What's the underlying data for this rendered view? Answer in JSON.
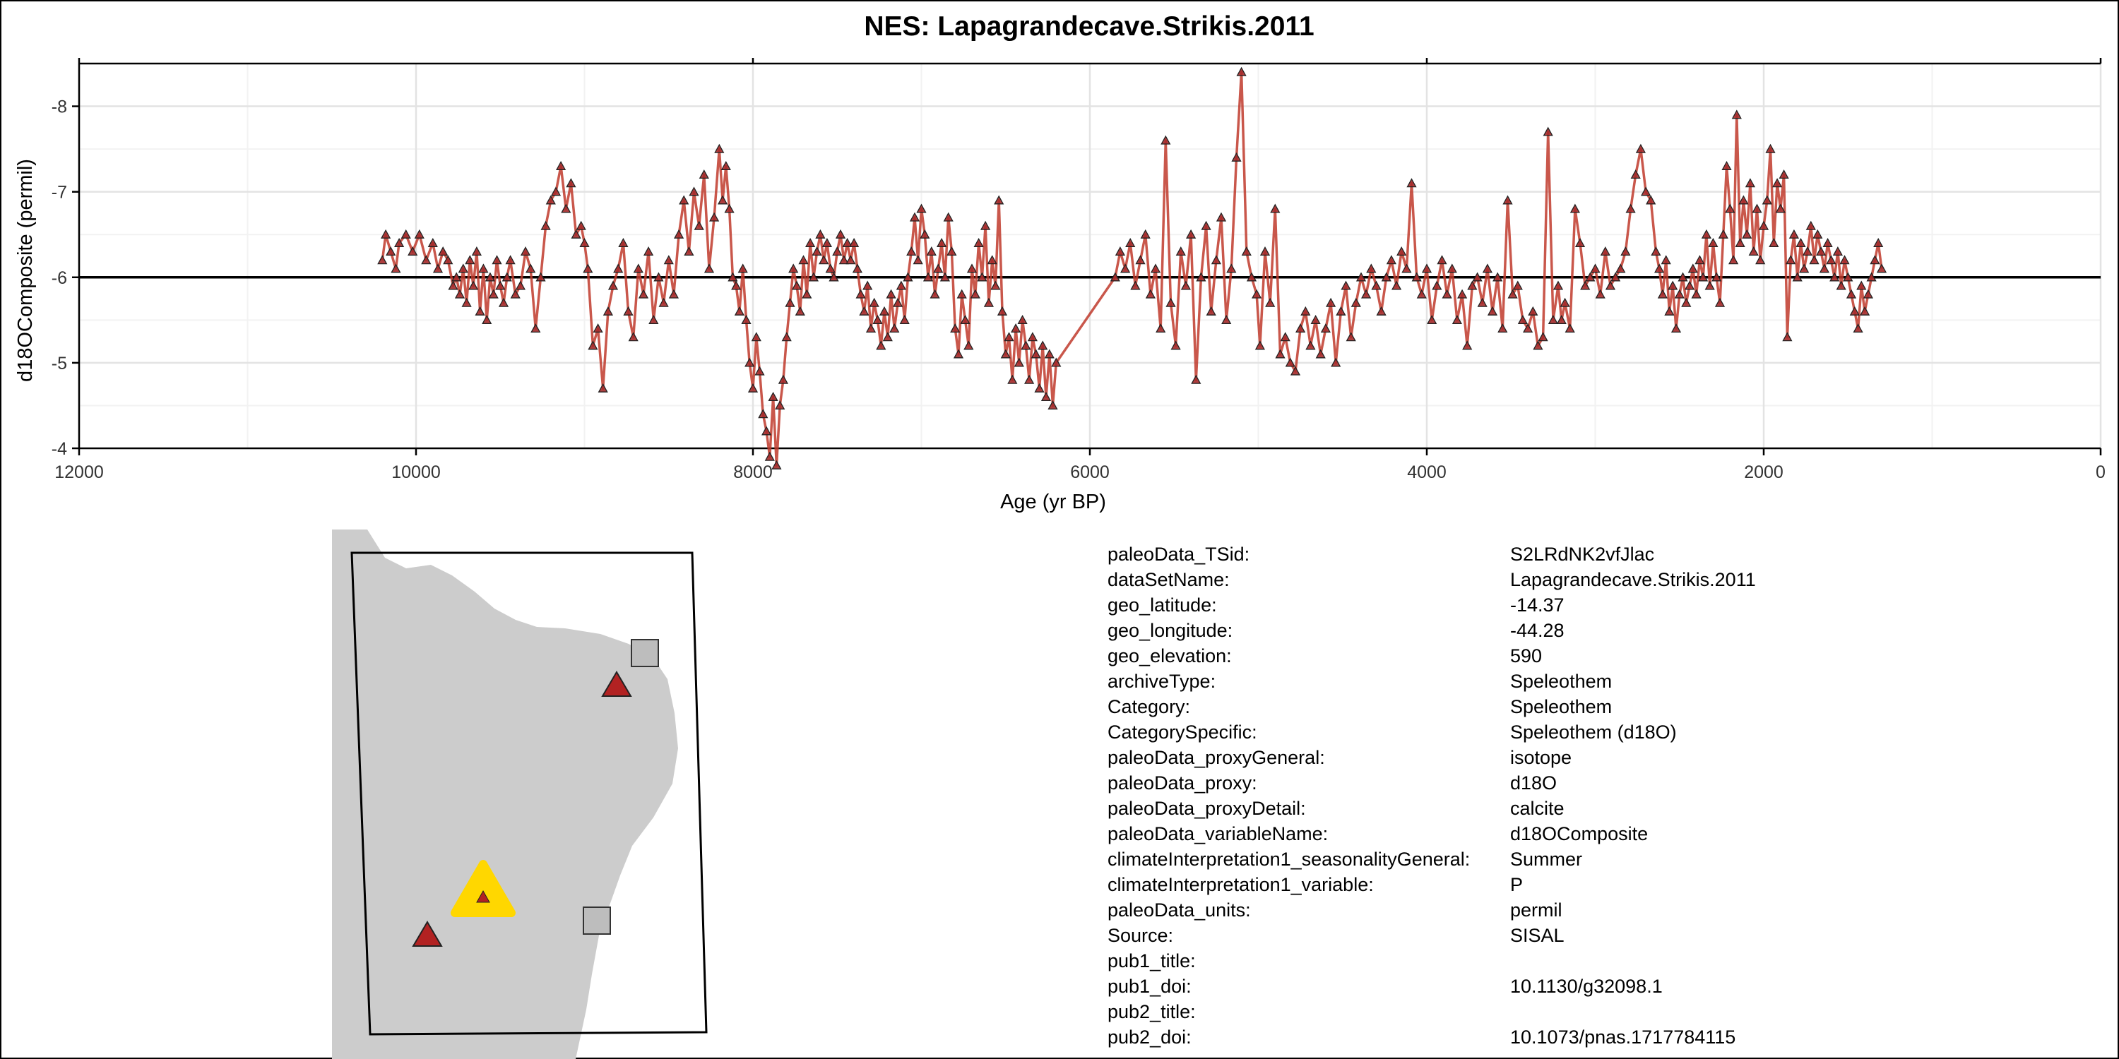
{
  "chart_data": {
    "type": "line",
    "title": "NES: Lapagrandecave.Strikis.2011",
    "xlabel": "Age (yr BP)",
    "ylabel": "d18OComposite (permil)",
    "xlim": [
      12000,
      0
    ],
    "ylim": [
      -4,
      -8.5
    ],
    "y_reversed": true,
    "x_reversed": true,
    "x_ticks": [
      12000,
      10000,
      8000,
      6000,
      4000,
      2000,
      0
    ],
    "x_tick_labels": [
      "12000",
      "10000",
      "8000",
      "6000",
      "4000",
      "2000",
      "0"
    ],
    "y_ticks": [
      -8,
      -7,
      -6,
      -5,
      -4
    ],
    "y_tick_labels": [
      "-8",
      "-7",
      "-6",
      "-5",
      "-4"
    ],
    "reference_line": -6,
    "grid": true,
    "marker": "triangle",
    "line_color": "#C0392B",
    "marker_fill": "#A52A2A",
    "series": [
      {
        "x": [
          10200,
          10180,
          10150,
          10120,
          10100,
          10060,
          10020,
          9980,
          9940,
          9900,
          9870,
          9840,
          9810,
          9780,
          9760,
          9740,
          9720,
          9700,
          9680,
          9660,
          9640,
          9620,
          9600,
          9580,
          9560,
          9540,
          9520,
          9500,
          9480,
          9460,
          9440,
          9410,
          9380,
          9350,
          9320,
          9290,
          9260,
          9230,
          9200,
          9170,
          9140,
          9110,
          9080,
          9050,
          9020,
          9000,
          8980,
          8950,
          8920,
          8890,
          8860,
          8830,
          8800,
          8770,
          8740,
          8710,
          8680,
          8650,
          8620,
          8590,
          8560,
          8530,
          8500,
          8470,
          8440,
          8410,
          8380,
          8350,
          8320,
          8290,
          8260,
          8230,
          8200,
          8180,
          8160,
          8140,
          8120,
          8100,
          8080,
          8060,
          8040,
          8020,
          8000,
          7980,
          7960,
          7940,
          7920,
          7900,
          7880,
          7860,
          7840,
          7820,
          7800,
          7780,
          7760,
          7740,
          7720,
          7700,
          7680,
          7660,
          7640,
          7620,
          7600,
          7580,
          7560,
          7540,
          7520,
          7500,
          7480,
          7460,
          7440,
          7420,
          7400,
          7380,
          7360,
          7340,
          7320,
          7300,
          7280,
          7260,
          7240,
          7220,
          7200,
          7180,
          7160,
          7140,
          7120,
          7100,
          7080,
          7060,
          7040,
          7020,
          7000,
          6980,
          6960,
          6940,
          6920,
          6900,
          6880,
          6860,
          6840,
          6820,
          6800,
          6780,
          6760,
          6740,
          6720,
          6700,
          6680,
          6660,
          6640,
          6620,
          6600,
          6580,
          6560,
          6540,
          6520,
          6500,
          6480,
          6460,
          6440,
          6420,
          6400,
          6380,
          6360,
          6340,
          6320,
          6300,
          6280,
          6260,
          6240,
          6220,
          6200,
          5850,
          5820,
          5790,
          5760,
          5730,
          5700,
          5670,
          5640,
          5610,
          5580,
          5550,
          5520,
          5490,
          5460,
          5430,
          5400,
          5370,
          5340,
          5310,
          5280,
          5250,
          5220,
          5190,
          5160,
          5130,
          5100,
          5070,
          5040,
          5010,
          4990,
          4960,
          4930,
          4900,
          4870,
          4840,
          4810,
          4780,
          4750,
          4720,
          4690,
          4660,
          4630,
          4600,
          4570,
          4540,
          4510,
          4480,
          4450,
          4420,
          4390,
          4360,
          4330,
          4300,
          4270,
          4240,
          4210,
          4180,
          4150,
          4120,
          4090,
          4060,
          4030,
          4000,
          3970,
          3940,
          3910,
          3880,
          3850,
          3820,
          3790,
          3760,
          3730,
          3700,
          3670,
          3640,
          3610,
          3580,
          3550,
          3520,
          3490,
          3460,
          3430,
          3400,
          3370,
          3340,
          3310,
          3280,
          3250,
          3220,
          3200,
          3180,
          3150,
          3120,
          3090,
          3060,
          3030,
          3000,
          2970,
          2940,
          2910,
          2880,
          2850,
          2820,
          2790,
          2760,
          2730,
          2700,
          2670,
          2640,
          2620,
          2600,
          2580,
          2560,
          2540,
          2520,
          2500,
          2480,
          2460,
          2440,
          2420,
          2400,
          2380,
          2360,
          2340,
          2320,
          2300,
          2280,
          2260,
          2240,
          2220,
          2200,
          2180,
          2160,
          2140,
          2120,
          2100,
          2080,
          2060,
          2040,
          2020,
          2000,
          1980,
          1960,
          1940,
          1920,
          1900,
          1880,
          1860,
          1840,
          1820,
          1800,
          1780,
          1760,
          1740,
          1720,
          1700,
          1680,
          1660,
          1640,
          1620,
          1600,
          1580,
          1560,
          1540,
          1520,
          1500,
          1480,
          1460,
          1440,
          1420,
          1400,
          1380,
          1360,
          1340,
          1320,
          1300
        ],
        "y": [
          -6.2,
          -6.5,
          -6.3,
          -6.1,
          -6.4,
          -6.5,
          -6.3,
          -6.5,
          -6.2,
          -6.4,
          -6.1,
          -6.3,
          -6.2,
          -5.9,
          -6.0,
          -5.8,
          -6.1,
          -5.7,
          -6.2,
          -5.9,
          -6.3,
          -5.6,
          -6.1,
          -5.5,
          -6.0,
          -5.8,
          -6.2,
          -5.9,
          -5.7,
          -6.0,
          -6.2,
          -5.8,
          -5.9,
          -6.3,
          -6.1,
          -5.4,
          -6.0,
          -6.6,
          -6.9,
          -7.0,
          -7.3,
          -6.8,
          -7.1,
          -6.5,
          -6.6,
          -6.4,
          -6.1,
          -5.2,
          -5.4,
          -4.7,
          -5.6,
          -5.9,
          -6.1,
          -6.4,
          -5.6,
          -5.3,
          -6.1,
          -5.8,
          -6.3,
          -5.5,
          -6.0,
          -5.7,
          -6.2,
          -5.8,
          -6.5,
          -6.9,
          -6.3,
          -7.0,
          -6.6,
          -7.2,
          -6.1,
          -6.7,
          -7.5,
          -6.9,
          -7.3,
          -6.8,
          -6.0,
          -5.9,
          -5.6,
          -6.1,
          -5.5,
          -5.0,
          -4.7,
          -5.3,
          -4.9,
          -4.4,
          -4.2,
          -3.9,
          -4.6,
          -3.8,
          -4.5,
          -4.8,
          -5.3,
          -5.7,
          -6.1,
          -5.9,
          -5.6,
          -6.2,
          -5.8,
          -6.4,
          -6.0,
          -6.3,
          -6.5,
          -6.2,
          -6.4,
          -6.1,
          -6.0,
          -6.3,
          -6.5,
          -6.2,
          -6.4,
          -6.2,
          -6.4,
          -6.1,
          -5.8,
          -5.6,
          -5.9,
          -5.4,
          -5.7,
          -5.5,
          -5.2,
          -5.6,
          -5.3,
          -5.8,
          -5.4,
          -5.7,
          -5.9,
          -5.5,
          -6.0,
          -6.3,
          -6.7,
          -6.2,
          -6.8,
          -6.5,
          -6.0,
          -6.3,
          -5.8,
          -6.1,
          -6.4,
          -6.0,
          -6.7,
          -6.3,
          -5.4,
          -5.1,
          -5.8,
          -5.5,
          -5.2,
          -6.1,
          -5.8,
          -6.4,
          -6.0,
          -6.6,
          -5.7,
          -6.2,
          -5.9,
          -6.9,
          -5.6,
          -5.1,
          -5.3,
          -4.8,
          -5.4,
          -5.0,
          -5.5,
          -5.2,
          -4.8,
          -5.3,
          -5.1,
          -4.7,
          -5.2,
          -4.6,
          -5.1,
          -4.5,
          -5.0,
          -6.0,
          -6.3,
          -6.1,
          -6.4,
          -5.9,
          -6.2,
          -6.5,
          -5.8,
          -6.1,
          -5.4,
          -7.6,
          -5.7,
          -5.2,
          -6.3,
          -5.9,
          -6.5,
          -4.8,
          -6.0,
          -6.6,
          -5.6,
          -6.2,
          -6.7,
          -5.5,
          -6.1,
          -7.4,
          -8.4,
          -6.3,
          -6.0,
          -5.8,
          -5.2,
          -6.3,
          -5.7,
          -6.8,
          -5.1,
          -5.3,
          -5.0,
          -4.9,
          -5.4,
          -5.6,
          -5.2,
          -5.5,
          -5.1,
          -5.4,
          -5.7,
          -5.0,
          -5.6,
          -5.9,
          -5.3,
          -5.7,
          -6.0,
          -5.8,
          -6.1,
          -5.9,
          -5.6,
          -6.0,
          -6.2,
          -5.9,
          -6.3,
          -6.1,
          -7.1,
          -6.0,
          -5.8,
          -6.1,
          -5.5,
          -5.9,
          -6.2,
          -5.8,
          -6.1,
          -5.5,
          -5.8,
          -5.2,
          -5.9,
          -6.0,
          -5.7,
          -6.1,
          -5.6,
          -6.0,
          -5.4,
          -6.9,
          -5.8,
          -5.9,
          -5.5,
          -5.4,
          -5.6,
          -5.2,
          -5.3,
          -7.7,
          -5.5,
          -5.9,
          -5.5,
          -5.7,
          -5.4,
          -6.8,
          -6.4,
          -5.9,
          -6.0,
          -6.1,
          -5.8,
          -6.3,
          -5.9,
          -6.0,
          -6.1,
          -6.3,
          -6.8,
          -7.2,
          -7.5,
          -7.0,
          -6.9,
          -6.3,
          -6.1,
          -5.8,
          -6.2,
          -5.6,
          -5.9,
          -5.4,
          -5.8,
          -6.0,
          -5.7,
          -5.9,
          -6.1,
          -5.8,
          -6.2,
          -6.0,
          -6.5,
          -5.9,
          -6.4,
          -6.0,
          -5.7,
          -6.5,
          -7.3,
          -6.8,
          -6.2,
          -7.9,
          -6.4,
          -6.9,
          -6.5,
          -7.1,
          -6.3,
          -6.8,
          -6.2,
          -6.6,
          -6.9,
          -7.5,
          -6.4,
          -7.1,
          -6.8,
          -7.2,
          -5.3,
          -6.2,
          -6.5,
          -6.0,
          -6.4,
          -6.1,
          -6.3,
          -6.6,
          -6.2,
          -6.5,
          -6.3,
          -6.1,
          -6.4,
          -6.2,
          -6.0,
          -6.3,
          -5.9,
          -6.2,
          -6.0,
          -5.8,
          -5.6,
          -5.4,
          -5.9,
          -5.6,
          -5.8,
          -6.0,
          -6.2,
          -6.4,
          -6.1
        ]
      }
    ]
  },
  "metadata": [
    {
      "key": "paleoData_TSid:",
      "value": "S2LRdNK2vfJlac"
    },
    {
      "key": "dataSetName:",
      "value": "Lapagrandecave.Strikis.2011"
    },
    {
      "key": "geo_latitude:",
      "value": "-14.37"
    },
    {
      "key": "geo_longitude:",
      "value": "-44.28"
    },
    {
      "key": "geo_elevation:",
      "value": "590"
    },
    {
      "key": "archiveType:",
      "value": "Speleothem"
    },
    {
      "key": "Category:",
      "value": "Speleothem"
    },
    {
      "key": "CategorySpecific:",
      "value": "Speleothem (d18O)"
    },
    {
      "key": "paleoData_proxyGeneral:",
      "value": "isotope"
    },
    {
      "key": "paleoData_proxy:",
      "value": "d18O"
    },
    {
      "key": "paleoData_proxyDetail:",
      "value": "calcite"
    },
    {
      "key": "paleoData_variableName:",
      "value": "d18OComposite"
    },
    {
      "key": "climateInterpretation1_seasonalityGeneral:",
      "value": "Summer"
    },
    {
      "key": "climateInterpretation1_variable:",
      "value": "P"
    },
    {
      "key": "paleoData_units:",
      "value": "permil"
    },
    {
      "key": "Source:",
      "value": "SISAL"
    },
    {
      "key": "pub1_title:",
      "value": ""
    },
    {
      "key": "pub1_doi:",
      "value": "10.1130/g32098.1"
    },
    {
      "key": "pub2_title:",
      "value": ""
    },
    {
      "key": "pub2_doi:",
      "value": "10.1073/pnas.1717784115"
    }
  ],
  "map": {
    "land_color": "#CCCCCC",
    "frame_color": "#000000",
    "site_marker_color": "#B22222",
    "highlight_marker_color": "#FFD700",
    "other_marker_color": "#BDBDBD",
    "sites": [
      {
        "kind": "other-site",
        "shape": "square"
      },
      {
        "kind": "record-site",
        "shape": "triangle"
      },
      {
        "kind": "highlighted-site",
        "shape": "triangle"
      },
      {
        "kind": "other-site",
        "shape": "square"
      },
      {
        "kind": "record-site",
        "shape": "triangle"
      }
    ]
  }
}
